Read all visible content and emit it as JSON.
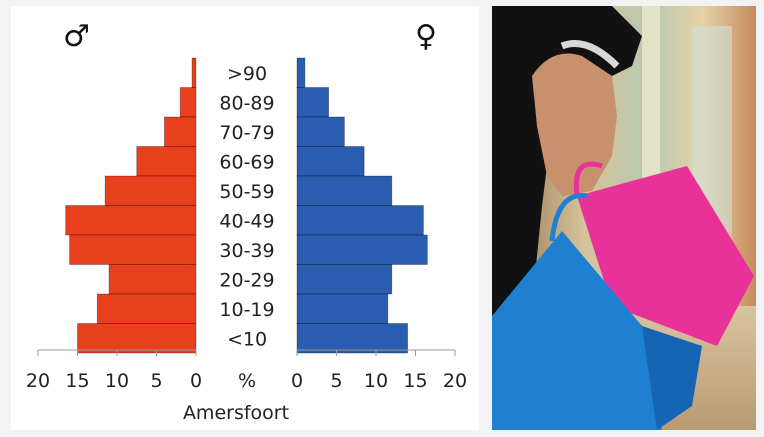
{
  "chart_data": {
    "type": "bar",
    "title": "",
    "location": "Amersfoort",
    "axis_unit": "%",
    "male_symbol": "♂",
    "female_symbol": "♀",
    "categories": [
      ">90",
      "80-89",
      "70-79",
      "60-69",
      "50-59",
      "40-49",
      "30-39",
      "20-29",
      "10-19",
      "<10"
    ],
    "series": [
      {
        "name": "♂",
        "color": "#e8401c",
        "values": [
          0.5,
          2,
          4,
          7.5,
          11.5,
          16.5,
          16,
          11,
          12.5,
          15
        ]
      },
      {
        "name": "♀",
        "color": "#2a5cb0",
        "values": [
          1,
          4,
          6,
          8.5,
          12,
          16,
          16.5,
          12,
          11.5,
          14
        ]
      }
    ],
    "xlim": [
      0,
      20
    ],
    "ticks": [
      "0",
      "5",
      "10",
      "15",
      "20"
    ],
    "male_ticks": [
      "20",
      "15",
      "10",
      "5",
      "0"
    ],
    "female_ticks": [
      "0",
      "5",
      "10",
      "15",
      "20"
    ]
  },
  "photo": {
    "subject": "hand holding shopping bags in a mall",
    "colors": {
      "bag_pink": "#e8329a",
      "bag_blue": "#1f7fd0",
      "sleeve": "#111111",
      "skin": "#c9906e"
    }
  }
}
